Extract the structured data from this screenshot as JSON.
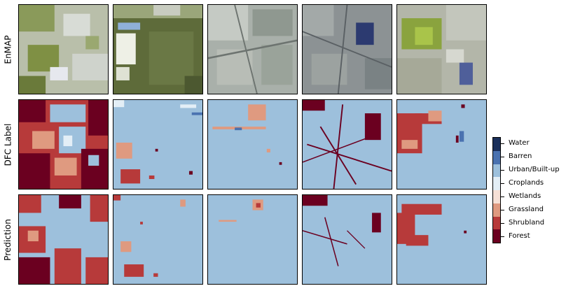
{
  "rows": [
    {
      "label": "EnMAP"
    },
    {
      "label": "DFC Label"
    },
    {
      "label": "Prediction"
    }
  ],
  "legend": [
    {
      "name": "Water",
      "color": "#1a2f5a"
    },
    {
      "name": "Barren",
      "color": "#4a72b0"
    },
    {
      "name": "Urban/Built-up",
      "color": "#9dc0dc"
    },
    {
      "name": "Croplands",
      "color": "#e3eef6"
    },
    {
      "name": "Wetlands",
      "color": "#f6e0d6"
    },
    {
      "name": "Grassland",
      "color": "#df9a80"
    },
    {
      "name": "Shrubland",
      "color": "#b73a3a"
    },
    {
      "name": "Forest",
      "color": "#6b0020"
    }
  ]
}
